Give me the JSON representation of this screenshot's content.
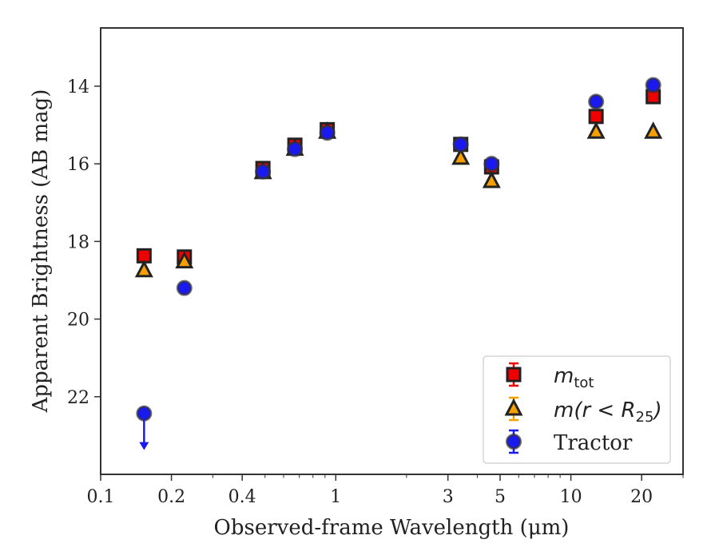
{
  "chart_data": {
    "type": "scatter",
    "xscale": "log",
    "yaxis_inverted": true,
    "xlim": [
      0.1,
      30
    ],
    "ylim": [
      24,
      12.5
    ],
    "xlabel": "Observed-frame Wavelength (μm)",
    "ylabel": "Apparent Brightness (AB mag)",
    "x_ticks": [
      {
        "value": 0.1,
        "label": "0.1"
      },
      {
        "value": 0.2,
        "label": "0.2"
      },
      {
        "value": 0.4,
        "label": "0.4"
      },
      {
        "value": 1,
        "label": "1"
      },
      {
        "value": 3,
        "label": "3"
      },
      {
        "value": 5,
        "label": "5"
      },
      {
        "value": 10,
        "label": "10"
      },
      {
        "value": 20,
        "label": "20"
      }
    ],
    "y_ticks": [
      {
        "value": 14,
        "label": "14"
      },
      {
        "value": 16,
        "label": "16"
      },
      {
        "value": 18,
        "label": "18"
      },
      {
        "value": 20,
        "label": "20"
      },
      {
        "value": 22,
        "label": "22"
      }
    ],
    "grid": false,
    "legend_position": "lower-right",
    "series": [
      {
        "key": "m_tot",
        "legend_main": "m",
        "legend_sub": "tot",
        "marker": "square",
        "color": "#ee0000",
        "points": [
          {
            "x": 0.153,
            "y": 18.37
          },
          {
            "x": 0.227,
            "y": 18.4
          },
          {
            "x": 0.49,
            "y": 16.12
          },
          {
            "x": 0.67,
            "y": 15.52
          },
          {
            "x": 0.92,
            "y": 15.12
          },
          {
            "x": 3.4,
            "y": 15.5
          },
          {
            "x": 4.6,
            "y": 16.08
          },
          {
            "x": 12.8,
            "y": 14.78
          },
          {
            "x": 22.4,
            "y": 14.27
          }
        ]
      },
      {
        "key": "m_r_R25",
        "legend_main": "m",
        "legend_rest": "(r < R",
        "legend_sub": "25",
        "legend_end": ")",
        "marker": "triangle",
        "color": "#f5a000",
        "points": [
          {
            "x": 0.153,
            "y": 18.75
          },
          {
            "x": 0.227,
            "y": 18.52
          },
          {
            "x": 0.49,
            "y": 16.22
          },
          {
            "x": 0.67,
            "y": 15.62
          },
          {
            "x": 0.92,
            "y": 15.18
          },
          {
            "x": 3.4,
            "y": 15.85
          },
          {
            "x": 4.6,
            "y": 16.45
          },
          {
            "x": 12.8,
            "y": 15.18
          },
          {
            "x": 22.4,
            "y": 15.18
          }
        ]
      },
      {
        "key": "tractor",
        "legend_label": "Tractor",
        "marker": "circle",
        "color": "#1a1aee",
        "points": [
          {
            "x": 0.153,
            "y": 22.43,
            "upper_limit": true
          },
          {
            "x": 0.227,
            "y": 19.2
          },
          {
            "x": 0.49,
            "y": 16.2
          },
          {
            "x": 0.67,
            "y": 15.62
          },
          {
            "x": 0.92,
            "y": 15.2
          },
          {
            "x": 3.4,
            "y": 15.5
          },
          {
            "x": 4.6,
            "y": 16.0
          },
          {
            "x": 12.8,
            "y": 14.4
          },
          {
            "x": 22.4,
            "y": 13.97
          }
        ]
      }
    ]
  }
}
